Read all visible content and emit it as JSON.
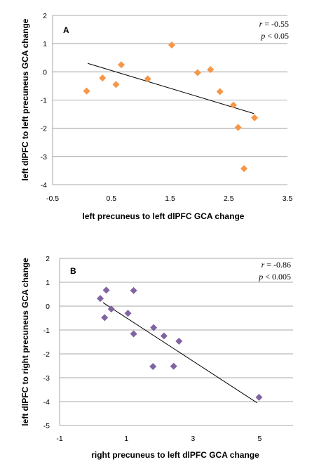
{
  "chart_data": [
    {
      "type": "scatter",
      "panel_label": "A",
      "r_label": "r",
      "r_value": " = -0.55",
      "p_label": "p",
      "p_value": " < 0.05",
      "xlabel": "left precuneus to left dlPFC GCA change",
      "ylabel": "left dlPFC to left precuneus  GCA change",
      "xlim": [
        -0.5,
        3.5
      ],
      "ylim": [
        -4,
        2
      ],
      "xticks": [
        "-0.5",
        "0.5",
        "1.5",
        "2.5",
        "3.5"
      ],
      "yticks": [
        "2",
        "1",
        "0",
        "-1",
        "-2",
        "-3",
        "-4"
      ],
      "grid": true,
      "marker": "diamond",
      "color": "#F79646",
      "points": [
        [
          0.08,
          -0.68
        ],
        [
          0.35,
          -0.22
        ],
        [
          0.58,
          -0.45
        ],
        [
          0.67,
          0.25
        ],
        [
          1.12,
          -0.25
        ],
        [
          1.53,
          0.95
        ],
        [
          1.97,
          -0.03
        ],
        [
          2.19,
          0.08
        ],
        [
          2.35,
          -0.7
        ],
        [
          2.58,
          -1.18
        ],
        [
          2.66,
          -1.97
        ],
        [
          2.76,
          -3.43
        ],
        [
          2.94,
          -1.63
        ]
      ],
      "trendline": [
        [
          0.1,
          0.3
        ],
        [
          2.93,
          -1.48
        ]
      ]
    },
    {
      "type": "scatter",
      "panel_label": "B",
      "r_label": "r",
      "r_value": " = -0.86",
      "p_label": "p",
      "p_value": " < 0.005",
      "xlabel": "right precuneus to left dlPFC GCA change",
      "ylabel": "left dlPFC to right precuneus  GCA change",
      "xlim": [
        -1,
        6
      ],
      "ylim": [
        -5,
        2
      ],
      "xticks": [
        "-1",
        "1",
        "3",
        "5"
      ],
      "yticks": [
        "2",
        "1",
        "0",
        "-1",
        "-2",
        "-3",
        "-4",
        "-5"
      ],
      "grid": true,
      "marker": "diamond",
      "color": "#8064A2",
      "points": [
        [
          0.22,
          0.32
        ],
        [
          0.35,
          -0.48
        ],
        [
          0.4,
          0.67
        ],
        [
          0.55,
          -0.12
        ],
        [
          1.05,
          -0.3
        ],
        [
          1.22,
          0.65
        ],
        [
          1.22,
          -1.16
        ],
        [
          1.82,
          -0.9
        ],
        [
          1.8,
          -2.53
        ],
        [
          2.13,
          -1.25
        ],
        [
          2.42,
          -2.52
        ],
        [
          2.58,
          -1.47
        ],
        [
          4.98,
          -3.82
        ]
      ],
      "trendline": [
        [
          0.3,
          0.15
        ],
        [
          4.92,
          -4.05
        ]
      ]
    }
  ]
}
